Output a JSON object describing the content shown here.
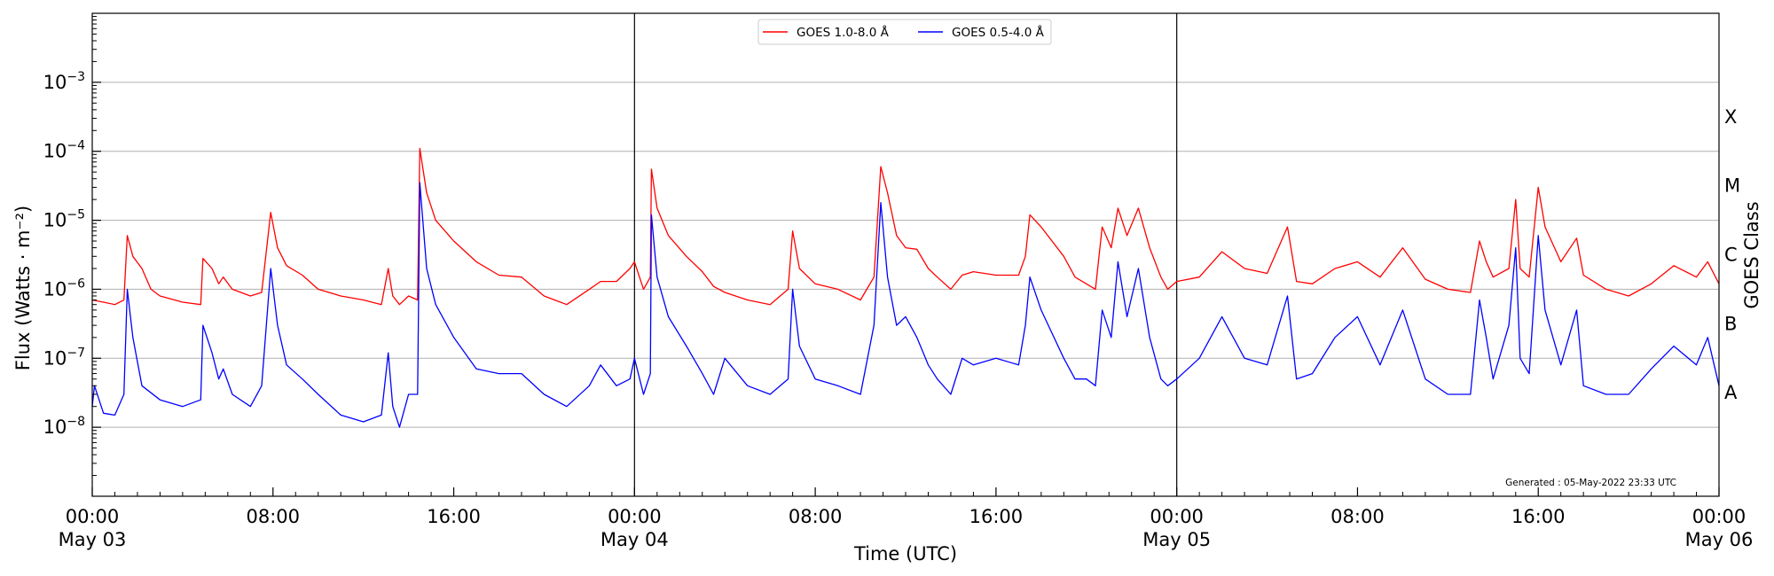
{
  "chart_data": {
    "type": "line",
    "title": "",
    "xlabel": "Time (UTC)",
    "ylabel": "Flux (Watts · m⁻²)",
    "y2label": "GOES Class",
    "yscale": "log",
    "ylim": [
      1e-09,
      0.01
    ],
    "xlim_hours": [
      0,
      72
    ],
    "x_ticks": [
      {
        "hour": 0,
        "line1": "00:00",
        "line2": "May 03"
      },
      {
        "hour": 8,
        "line1": "08:00",
        "line2": ""
      },
      {
        "hour": 16,
        "line1": "16:00",
        "line2": ""
      },
      {
        "hour": 24,
        "line1": "00:00",
        "line2": "May 04"
      },
      {
        "hour": 32,
        "line1": "08:00",
        "line2": ""
      },
      {
        "hour": 40,
        "line1": "16:00",
        "line2": ""
      },
      {
        "hour": 48,
        "line1": "00:00",
        "line2": "May 05"
      },
      {
        "hour": 56,
        "line1": "08:00",
        "line2": ""
      },
      {
        "hour": 64,
        "line1": "16:00",
        "line2": ""
      },
      {
        "hour": 72,
        "line1": "00:00",
        "line2": "May 06"
      }
    ],
    "y_ticks": [
      {
        "exp": -8,
        "label": "10",
        "sup": "−8"
      },
      {
        "exp": -7,
        "label": "10",
        "sup": "−7"
      },
      {
        "exp": -6,
        "label": "10",
        "sup": "−6"
      },
      {
        "exp": -5,
        "label": "10",
        "sup": "−5"
      },
      {
        "exp": -4,
        "label": "10",
        "sup": "−4"
      },
      {
        "exp": -3,
        "label": "10",
        "sup": "−3"
      }
    ],
    "goes_classes": [
      {
        "label": "A",
        "exp": -7.5
      },
      {
        "label": "B",
        "exp": -6.5
      },
      {
        "label": "C",
        "exp": -5.5
      },
      {
        "label": "M",
        "exp": -4.5
      },
      {
        "label": "X",
        "exp": -3.5
      }
    ],
    "grid": true,
    "day_boundaries_hours": [
      24,
      48
    ],
    "legend_position": "top-center",
    "footnote": "Generated : 05-May-2022 23:33 UTC",
    "series": [
      {
        "name": "GOES 1.0-8.0 Å",
        "color": "#ff0000",
        "points": [
          [
            0,
            7e-07
          ],
          [
            0.5,
            6.5e-07
          ],
          [
            1,
            6e-07
          ],
          [
            1.4,
            7e-07
          ],
          [
            1.55,
            6e-06
          ],
          [
            1.8,
            3e-06
          ],
          [
            2.2,
            2e-06
          ],
          [
            2.6,
            1e-06
          ],
          [
            3,
            8e-07
          ],
          [
            4,
            6.5e-07
          ],
          [
            4.8,
            6e-07
          ],
          [
            4.9,
            2.8e-06
          ],
          [
            5.3,
            2e-06
          ],
          [
            5.6,
            1.2e-06
          ],
          [
            5.8,
            1.5e-06
          ],
          [
            6.2,
            1e-06
          ],
          [
            7,
            8e-07
          ],
          [
            7.5,
            9e-07
          ],
          [
            7.9,
            1.3e-05
          ],
          [
            8.2,
            4e-06
          ],
          [
            8.6,
            2.2e-06
          ],
          [
            9.3,
            1.6e-06
          ],
          [
            10,
            1e-06
          ],
          [
            11,
            8e-07
          ],
          [
            12,
            7e-07
          ],
          [
            12.8,
            6e-07
          ],
          [
            13.1,
            2e-06
          ],
          [
            13.3,
            8e-07
          ],
          [
            13.6,
            6e-07
          ],
          [
            14,
            8e-07
          ],
          [
            14.4,
            7e-07
          ],
          [
            14.5,
            0.00011
          ],
          [
            14.8,
            2.5e-05
          ],
          [
            15.2,
            1e-05
          ],
          [
            16,
            5e-06
          ],
          [
            17,
            2.5e-06
          ],
          [
            18,
            1.6e-06
          ],
          [
            19,
            1.5e-06
          ],
          [
            20,
            8e-07
          ],
          [
            21,
            6e-07
          ],
          [
            22,
            1e-06
          ],
          [
            22.5,
            1.3e-06
          ],
          [
            23.2,
            1.3e-06
          ],
          [
            23.8,
            2e-06
          ],
          [
            24,
            2.5e-06
          ],
          [
            24.4,
            1e-06
          ],
          [
            24.7,
            1.5e-06
          ],
          [
            24.75,
            5.5e-05
          ],
          [
            25,
            1.5e-05
          ],
          [
            25.5,
            6e-06
          ],
          [
            26.3,
            3e-06
          ],
          [
            27,
            1.8e-06
          ],
          [
            27.5,
            1.1e-06
          ],
          [
            28,
            9e-07
          ],
          [
            29,
            7e-07
          ],
          [
            30,
            6e-07
          ],
          [
            30.8,
            1e-06
          ],
          [
            31,
            7e-06
          ],
          [
            31.3,
            2e-06
          ],
          [
            32,
            1.2e-06
          ],
          [
            33,
            1e-06
          ],
          [
            34,
            7e-07
          ],
          [
            34.6,
            1.5e-06
          ],
          [
            34.9,
            6e-05
          ],
          [
            35.2,
            2.5e-05
          ],
          [
            35.6,
            6e-06
          ],
          [
            36,
            4e-06
          ],
          [
            36.5,
            3.8e-06
          ],
          [
            37,
            2e-06
          ],
          [
            37.4,
            1.5e-06
          ],
          [
            38,
            1e-06
          ],
          [
            38.5,
            1.6e-06
          ],
          [
            39,
            1.8e-06
          ],
          [
            40,
            1.6e-06
          ],
          [
            41,
            1.6e-06
          ],
          [
            41.3,
            3e-06
          ],
          [
            41.5,
            1.2e-05
          ],
          [
            42,
            8e-06
          ],
          [
            43,
            3e-06
          ],
          [
            43.5,
            1.5e-06
          ],
          [
            44,
            1.2e-06
          ],
          [
            44.4,
            1e-06
          ],
          [
            44.7,
            8e-06
          ],
          [
            45.1,
            4e-06
          ],
          [
            45.4,
            1.5e-05
          ],
          [
            45.8,
            6e-06
          ],
          [
            46.3,
            1.5e-05
          ],
          [
            46.8,
            4e-06
          ],
          [
            47.3,
            1.5e-06
          ],
          [
            47.6,
            1e-06
          ],
          [
            48,
            1.3e-06
          ],
          [
            49,
            1.5e-06
          ],
          [
            50,
            3.5e-06
          ],
          [
            51,
            2e-06
          ],
          [
            52,
            1.7e-06
          ],
          [
            52.9,
            8e-06
          ],
          [
            53.3,
            1.3e-06
          ],
          [
            54,
            1.2e-06
          ],
          [
            55,
            2e-06
          ],
          [
            56,
            2.5e-06
          ],
          [
            57,
            1.5e-06
          ],
          [
            58,
            4e-06
          ],
          [
            59,
            1.4e-06
          ],
          [
            60,
            1e-06
          ],
          [
            61,
            9e-07
          ],
          [
            61.4,
            5e-06
          ],
          [
            61.7,
            2.5e-06
          ],
          [
            62,
            1.5e-06
          ],
          [
            62.7,
            2e-06
          ],
          [
            63,
            2e-05
          ],
          [
            63.2,
            2e-06
          ],
          [
            63.6,
            1.5e-06
          ],
          [
            64,
            3e-05
          ],
          [
            64.3,
            8e-06
          ],
          [
            65,
            2.5e-06
          ],
          [
            65.7,
            5.5e-06
          ],
          [
            66,
            1.6e-06
          ],
          [
            67,
            1e-06
          ],
          [
            68,
            8e-07
          ],
          [
            69,
            1.2e-06
          ],
          [
            70,
            2.2e-06
          ],
          [
            71,
            1.5e-06
          ],
          [
            71.5,
            2.5e-06
          ],
          [
            72,
            1.2e-06
          ]
        ]
      },
      {
        "name": "GOES 0.5-4.0 Å",
        "color": "#0000ff",
        "points": [
          [
            0,
            2e-08
          ],
          [
            0.1,
            4e-08
          ],
          [
            0.5,
            1.6e-08
          ],
          [
            1,
            1.5e-08
          ],
          [
            1.4,
            3e-08
          ],
          [
            1.55,
            1e-06
          ],
          [
            1.8,
            2e-07
          ],
          [
            2.2,
            4e-08
          ],
          [
            3,
            2.5e-08
          ],
          [
            4,
            2e-08
          ],
          [
            4.8,
            2.5e-08
          ],
          [
            4.9,
            3e-07
          ],
          [
            5.3,
            1.2e-07
          ],
          [
            5.6,
            5e-08
          ],
          [
            5.8,
            7e-08
          ],
          [
            6.2,
            3e-08
          ],
          [
            7,
            2e-08
          ],
          [
            7.5,
            4e-08
          ],
          [
            7.9,
            2e-06
          ],
          [
            8.2,
            3e-07
          ],
          [
            8.6,
            8e-08
          ],
          [
            9.3,
            5e-08
          ],
          [
            10,
            3e-08
          ],
          [
            11,
            1.5e-08
          ],
          [
            12,
            1.2e-08
          ],
          [
            12.8,
            1.5e-08
          ],
          [
            13.1,
            1.2e-07
          ],
          [
            13.3,
            2e-08
          ],
          [
            13.6,
            1e-08
          ],
          [
            14,
            3e-08
          ],
          [
            14.4,
            3e-08
          ],
          [
            14.5,
            3.5e-05
          ],
          [
            14.8,
            2e-06
          ],
          [
            15.2,
            6e-07
          ],
          [
            16,
            2e-07
          ],
          [
            17,
            7e-08
          ],
          [
            18,
            6e-08
          ],
          [
            19,
            6e-08
          ],
          [
            20,
            3e-08
          ],
          [
            21,
            2e-08
          ],
          [
            22,
            4e-08
          ],
          [
            22.5,
            8e-08
          ],
          [
            23.2,
            4e-08
          ],
          [
            23.8,
            5e-08
          ],
          [
            24,
            1e-07
          ],
          [
            24.4,
            3e-08
          ],
          [
            24.7,
            6e-08
          ],
          [
            24.75,
            1.2e-05
          ],
          [
            25,
            1.5e-06
          ],
          [
            25.5,
            4e-07
          ],
          [
            26.3,
            1.5e-07
          ],
          [
            27,
            6e-08
          ],
          [
            27.5,
            3e-08
          ],
          [
            28,
            1e-07
          ],
          [
            29,
            4e-08
          ],
          [
            30,
            3e-08
          ],
          [
            30.8,
            5e-08
          ],
          [
            31,
            1e-06
          ],
          [
            31.3,
            1.5e-07
          ],
          [
            32,
            5e-08
          ],
          [
            33,
            4e-08
          ],
          [
            34,
            3e-08
          ],
          [
            34.6,
            3e-07
          ],
          [
            34.9,
            1.8e-05
          ],
          [
            35.2,
            1.5e-06
          ],
          [
            35.6,
            3e-07
          ],
          [
            36,
            4e-07
          ],
          [
            36.5,
            2e-07
          ],
          [
            37,
            8e-08
          ],
          [
            37.4,
            5e-08
          ],
          [
            38,
            3e-08
          ],
          [
            38.5,
            1e-07
          ],
          [
            39,
            8e-08
          ],
          [
            40,
            1e-07
          ],
          [
            41,
            8e-08
          ],
          [
            41.3,
            3e-07
          ],
          [
            41.5,
            1.5e-06
          ],
          [
            42,
            5e-07
          ],
          [
            43,
            1e-07
          ],
          [
            43.5,
            5e-08
          ],
          [
            44,
            5e-08
          ],
          [
            44.4,
            4e-08
          ],
          [
            44.7,
            5e-07
          ],
          [
            45.1,
            2e-07
          ],
          [
            45.4,
            2.5e-06
          ],
          [
            45.8,
            4e-07
          ],
          [
            46.3,
            2e-06
          ],
          [
            46.8,
            2e-07
          ],
          [
            47.3,
            5e-08
          ],
          [
            47.6,
            4e-08
          ],
          [
            48,
            5e-08
          ],
          [
            49,
            1e-07
          ],
          [
            50,
            4e-07
          ],
          [
            51,
            1e-07
          ],
          [
            52,
            8e-08
          ],
          [
            52.9,
            8e-07
          ],
          [
            53.3,
            5e-08
          ],
          [
            54,
            6e-08
          ],
          [
            55,
            2e-07
          ],
          [
            56,
            4e-07
          ],
          [
            57,
            8e-08
          ],
          [
            58,
            5e-07
          ],
          [
            59,
            5e-08
          ],
          [
            60,
            3e-08
          ],
          [
            61,
            3e-08
          ],
          [
            61.4,
            7e-07
          ],
          [
            61.7,
            2e-07
          ],
          [
            62,
            5e-08
          ],
          [
            62.7,
            3e-07
          ],
          [
            63,
            4e-06
          ],
          [
            63.2,
            1e-07
          ],
          [
            63.6,
            6e-08
          ],
          [
            64,
            6e-06
          ],
          [
            64.3,
            5e-07
          ],
          [
            65,
            8e-08
          ],
          [
            65.7,
            5e-07
          ],
          [
            66,
            4e-08
          ],
          [
            67,
            3e-08
          ],
          [
            68,
            3e-08
          ],
          [
            69,
            7e-08
          ],
          [
            70,
            1.5e-07
          ],
          [
            71,
            8e-08
          ],
          [
            71.5,
            2e-07
          ],
          [
            72,
            4e-08
          ]
        ]
      }
    ]
  }
}
